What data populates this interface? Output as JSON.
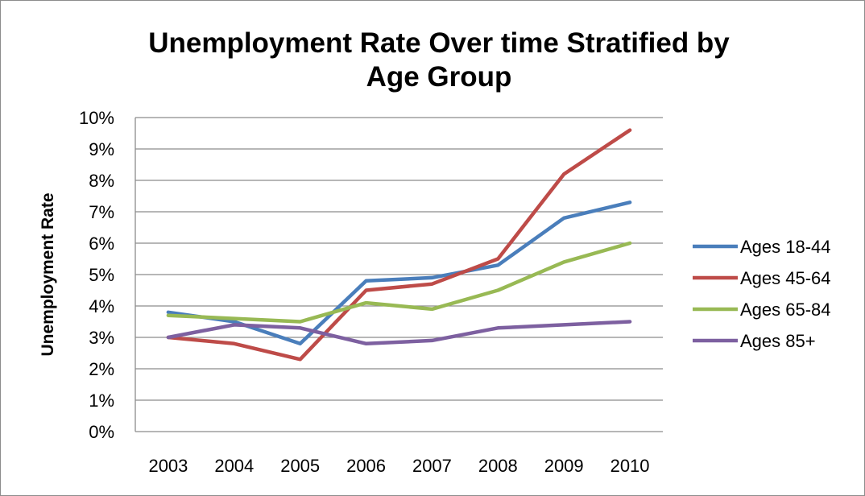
{
  "chart_data": {
    "type": "line",
    "title": "Unemployment Rate Over time Stratified by Age Group",
    "title_lines": [
      "Unemployment Rate Over time Stratified by",
      "Age Group"
    ],
    "xlabel": "",
    "ylabel": "Unemployment Rate",
    "categories": [
      "2003",
      "2004",
      "2005",
      "2006",
      "2007",
      "2008",
      "2009",
      "2010"
    ],
    "ylim": [
      0,
      10
    ],
    "yticks": [
      "0%",
      "1%",
      "2%",
      "3%",
      "4%",
      "5%",
      "6%",
      "7%",
      "8%",
      "9%",
      "10%"
    ],
    "grid": true,
    "legend_position": "right",
    "series": [
      {
        "name": "Ages 18-44",
        "color": "#4a7ebb",
        "values": [
          3.8,
          3.5,
          2.8,
          4.8,
          4.9,
          5.3,
          6.8,
          7.3
        ]
      },
      {
        "name": "Ages 45-64",
        "color": "#be4b48",
        "values": [
          3.0,
          2.8,
          2.3,
          4.5,
          4.7,
          5.5,
          8.2,
          9.6
        ]
      },
      {
        "name": "Ages 65-84",
        "color": "#98b954",
        "values": [
          3.7,
          3.6,
          3.5,
          4.1,
          3.9,
          4.5,
          5.4,
          6.0
        ]
      },
      {
        "name": "Ages 85+",
        "color": "#7d60a0",
        "values": [
          3.0,
          3.4,
          3.3,
          2.8,
          2.9,
          3.3,
          3.4,
          3.5
        ]
      }
    ]
  }
}
